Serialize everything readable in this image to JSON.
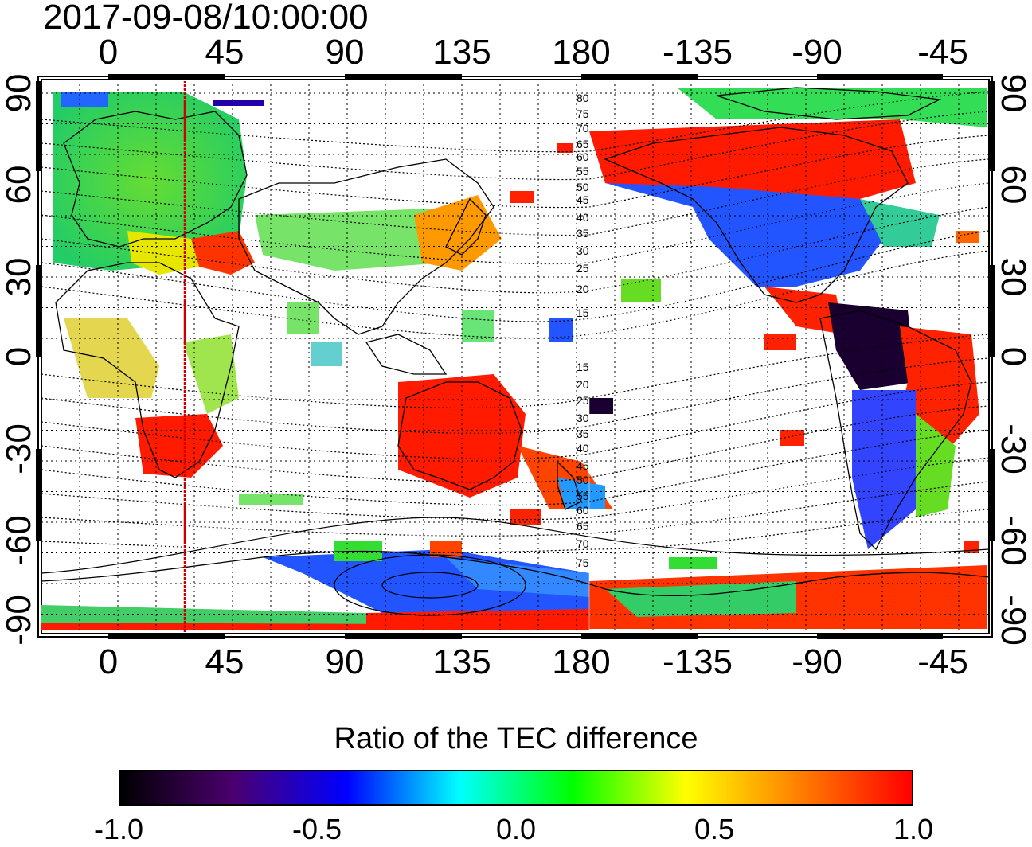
{
  "title": "2017-09-08/10:00:00",
  "x_ticks": [
    "0",
    "45",
    "90",
    "135",
    "180",
    "-135",
    "-90",
    "-45"
  ],
  "y_ticks": [
    "90",
    "60",
    "30",
    "0",
    "-30",
    "-60",
    "-90"
  ],
  "contour_labels": [
    "80",
    "75",
    "70",
    "65",
    "60",
    "55",
    "50",
    "45",
    "40",
    "35",
    "30",
    "25",
    "20",
    "15",
    "15",
    "20",
    "25",
    "30",
    "35",
    "40",
    "45",
    "50",
    "55",
    "60",
    "65",
    "70",
    "75"
  ],
  "colorbar": {
    "label": "Ratio of the TEC difference",
    "ticks": [
      "-1.0",
      "-0.5",
      "0.0",
      "0.5",
      "1.0"
    ],
    "stops": [
      "#000000",
      "#4b006e",
      "#0000ff",
      "#00ffff",
      "#00ff00",
      "#ffff00",
      "#ff8000",
      "#ff0000"
    ]
  },
  "marker_longitude": 30,
  "colors": {
    "frame": "#000000",
    "marker": "#cc0000",
    "coast": "#000000",
    "grid": "#000000"
  },
  "regions": [
    {
      "name": "europe-green",
      "color": "#33dd33"
    },
    {
      "name": "north-america-blue",
      "color": "#2255ff"
    },
    {
      "name": "canada-red",
      "color": "#ff1a00"
    },
    {
      "name": "australia-red",
      "color": "#ff1a00"
    },
    {
      "name": "south-africa-red",
      "color": "#ff1a00"
    },
    {
      "name": "south-america-mixed",
      "color": "#ff2200"
    },
    {
      "name": "antarctica-red",
      "color": "#ff1a00"
    }
  ]
}
